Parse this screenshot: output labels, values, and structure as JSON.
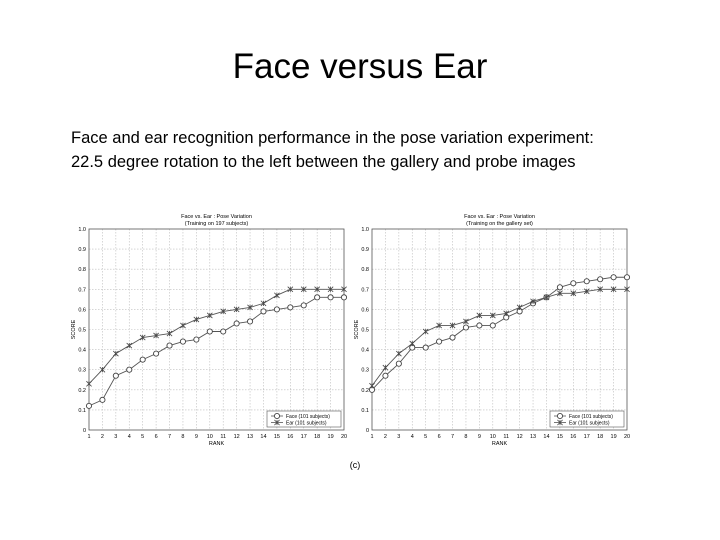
{
  "slide": {
    "title": "Face versus Ear",
    "caption_line1": "Face and ear recognition performance in the pose variation experiment:",
    "caption_line2": "22.5 degree rotation to the left between the gallery and probe images",
    "figure_label": "(c)"
  },
  "chart_data": [
    {
      "type": "line",
      "title": "Face vs. Ear : Pose Variation",
      "subtitle": "(Training on 197 subjects)",
      "xlabel": "RANK",
      "ylabel": "SCORE",
      "x": [
        1,
        2,
        3,
        4,
        5,
        6,
        7,
        8,
        9,
        10,
        11,
        12,
        13,
        14,
        15,
        16,
        17,
        18,
        19,
        20
      ],
      "xlim": [
        1,
        20
      ],
      "ylim": [
        0,
        1
      ],
      "yticks": [
        "0",
        "0.1",
        "0.2",
        "0.3",
        "0.4",
        "0.5",
        "0.6",
        "0.7",
        "0.8",
        "0.9",
        "1.0"
      ],
      "grid": true,
      "legend_position": "bottom-right",
      "series": [
        {
          "name": "Face (101 subjects)",
          "marker": "circle",
          "values": [
            0.12,
            0.15,
            0.27,
            0.3,
            0.35,
            0.38,
            0.42,
            0.44,
            0.45,
            0.49,
            0.49,
            0.53,
            0.54,
            0.59,
            0.6,
            0.61,
            0.62,
            0.66,
            0.66,
            0.66
          ]
        },
        {
          "name": "Ear (101 subjects)",
          "marker": "star",
          "values": [
            0.23,
            0.3,
            0.38,
            0.42,
            0.46,
            0.47,
            0.48,
            0.52,
            0.55,
            0.57,
            0.59,
            0.6,
            0.61,
            0.63,
            0.67,
            0.7,
            0.7,
            0.7,
            0.7,
            0.7
          ]
        }
      ]
    },
    {
      "type": "line",
      "title": "Face vs. Ear : Pose Variation",
      "subtitle": "(Training on the gallery set)",
      "xlabel": "RANK",
      "ylabel": "SCORE",
      "x": [
        1,
        2,
        3,
        4,
        5,
        6,
        7,
        8,
        9,
        10,
        11,
        12,
        13,
        14,
        15,
        16,
        17,
        18,
        19,
        20
      ],
      "xlim": [
        1,
        20
      ],
      "ylim": [
        0,
        1
      ],
      "yticks": [
        "0",
        "0.1",
        "0.2",
        "0.3",
        "0.4",
        "0.5",
        "0.6",
        "0.7",
        "0.8",
        "0.9",
        "1.0"
      ],
      "grid": true,
      "legend_position": "bottom-right",
      "series": [
        {
          "name": "Face (101 subjects)",
          "marker": "circle",
          "values": [
            0.2,
            0.27,
            0.33,
            0.41,
            0.41,
            0.44,
            0.46,
            0.51,
            0.52,
            0.52,
            0.56,
            0.59,
            0.63,
            0.66,
            0.71,
            0.73,
            0.74,
            0.75,
            0.76,
            0.76
          ]
        },
        {
          "name": "Ear (101 subjects)",
          "marker": "star",
          "values": [
            0.22,
            0.31,
            0.38,
            0.43,
            0.49,
            0.52,
            0.52,
            0.54,
            0.57,
            0.57,
            0.58,
            0.61,
            0.64,
            0.66,
            0.68,
            0.68,
            0.69,
            0.7,
            0.7,
            0.7
          ]
        }
      ]
    }
  ]
}
